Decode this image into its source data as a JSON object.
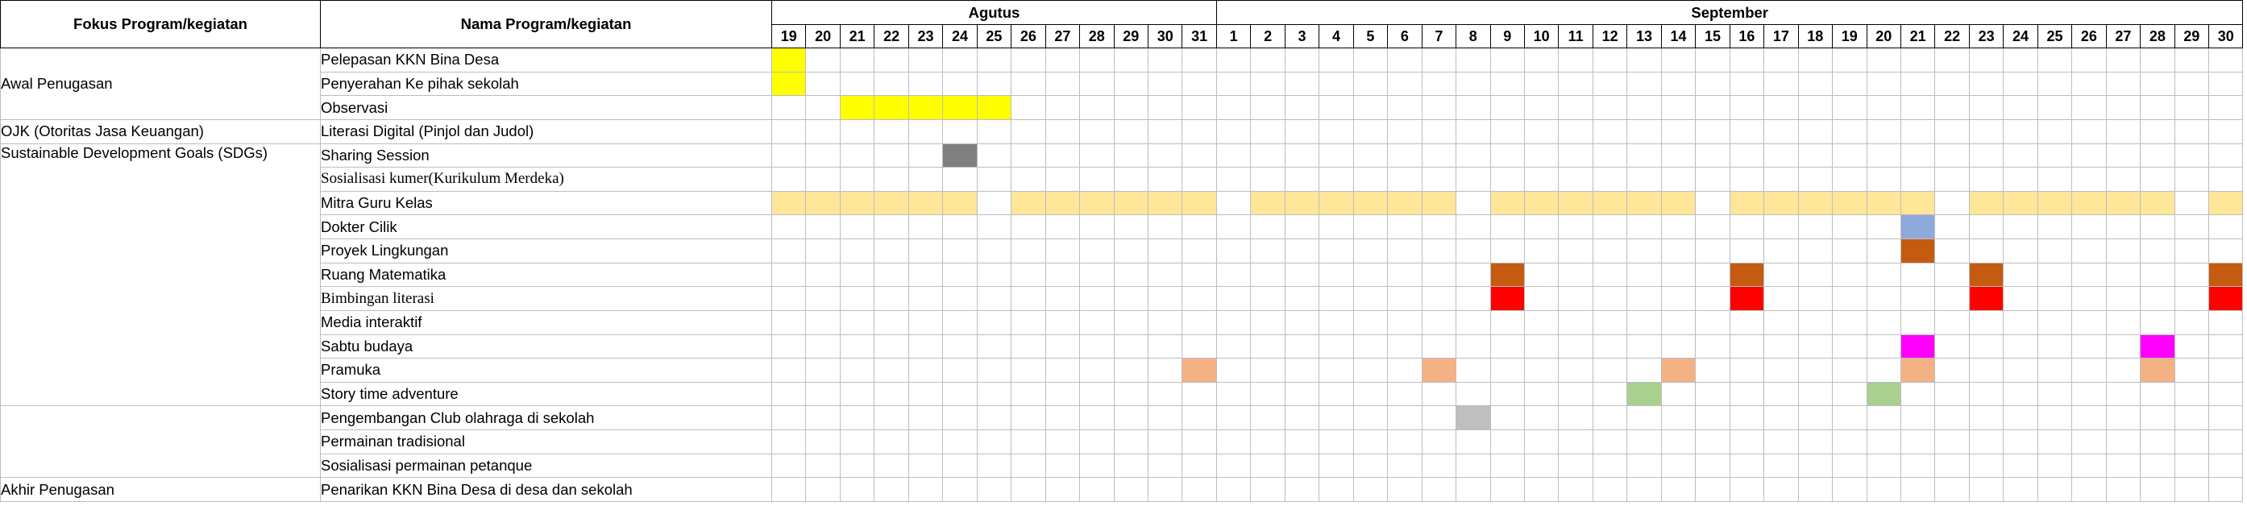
{
  "sheet": {
    "headers": {
      "fokus": "Fokus Program/kegiatan",
      "nama": "Nama Program/kegiatan",
      "months": [
        {
          "name": "Agutus",
          "days": [
            "19",
            "20",
            "21",
            "22",
            "23",
            "24",
            "25",
            "26",
            "27",
            "28",
            "29",
            "30",
            "31"
          ]
        },
        {
          "name": "September",
          "days": [
            "1",
            "2",
            "3",
            "4",
            "5",
            "6",
            "7",
            "8",
            "9",
            "10",
            "11",
            "12",
            "13",
            "14",
            "15",
            "16",
            "17",
            "18",
            "19",
            "20",
            "21",
            "22",
            "23",
            "24",
            "25",
            "26",
            "27",
            "28",
            "29",
            "30"
          ]
        }
      ]
    },
    "groups": [
      {
        "label": "Awal Penugasan",
        "span": 3
      },
      {
        "label": "OJK (Otoritas Jasa Keuangan)",
        "span": 1
      },
      {
        "label": "Sustainable Development Goals (SDGs)",
        "span": 11,
        "align": "top"
      },
      {
        "label": "",
        "span": 3
      },
      {
        "label": "Akhir Penugasan",
        "span": 1
      }
    ],
    "rows": [
      {
        "label": "Pelepasan KKN Bina Desa",
        "fills": [
          {
            "day": 0,
            "color": "#FFFF00"
          }
        ]
      },
      {
        "label": "Penyerahan Ke pihak  sekolah",
        "fills": [
          {
            "day": 0,
            "color": "#FFFF00"
          }
        ]
      },
      {
        "label": "Observasi",
        "fills": [
          {
            "day": 2,
            "color": "#FFFF00"
          },
          {
            "day": 3,
            "color": "#FFFF00"
          },
          {
            "day": 4,
            "color": "#FFFF00"
          },
          {
            "day": 5,
            "color": "#FFFF00"
          },
          {
            "day": 6,
            "color": "#FFFF00"
          }
        ]
      },
      {
        "label": "Literasi Digital (Pinjol dan Judol)",
        "fills": []
      },
      {
        "label": "Sharing Session",
        "fills": [
          {
            "day": 5,
            "color": "#808080"
          }
        ]
      },
      {
        "label": "Sosialisasi kumer(Kurikulum Merdeka)",
        "font": "serif",
        "fills": []
      },
      {
        "label": "Mitra Guru Kelas",
        "fills": [
          {
            "day": 0,
            "color": "#FFE699"
          },
          {
            "day": 1,
            "color": "#FFE699"
          },
          {
            "day": 2,
            "color": "#FFE699"
          },
          {
            "day": 3,
            "color": "#FFE699"
          },
          {
            "day": 4,
            "color": "#FFE699"
          },
          {
            "day": 5,
            "color": "#FFE699"
          },
          {
            "day": 7,
            "color": "#FFE699"
          },
          {
            "day": 8,
            "color": "#FFE699"
          },
          {
            "day": 9,
            "color": "#FFE699"
          },
          {
            "day": 10,
            "color": "#FFE699"
          },
          {
            "day": 11,
            "color": "#FFE699"
          },
          {
            "day": 12,
            "color": "#FFE699"
          },
          {
            "day": 14,
            "color": "#FFE699"
          },
          {
            "day": 15,
            "color": "#FFE699"
          },
          {
            "day": 16,
            "color": "#FFE699"
          },
          {
            "day": 17,
            "color": "#FFE699"
          },
          {
            "day": 18,
            "color": "#FFE699"
          },
          {
            "day": 19,
            "color": "#FFE699"
          },
          {
            "day": 21,
            "color": "#FFE699"
          },
          {
            "day": 22,
            "color": "#FFE699"
          },
          {
            "day": 23,
            "color": "#FFE699"
          },
          {
            "day": 24,
            "color": "#FFE699"
          },
          {
            "day": 25,
            "color": "#FFE699"
          },
          {
            "day": 26,
            "color": "#FFE699"
          },
          {
            "day": 28,
            "color": "#FFE699"
          },
          {
            "day": 29,
            "color": "#FFE699"
          },
          {
            "day": 30,
            "color": "#FFE699"
          },
          {
            "day": 31,
            "color": "#FFE699"
          },
          {
            "day": 32,
            "color": "#FFE699"
          },
          {
            "day": 33,
            "color": "#FFE699"
          },
          {
            "day": 35,
            "color": "#FFE699"
          },
          {
            "day": 36,
            "color": "#FFE699"
          },
          {
            "day": 37,
            "color": "#FFE699"
          },
          {
            "day": 38,
            "color": "#FFE699"
          },
          {
            "day": 39,
            "color": "#FFE699"
          },
          {
            "day": 40,
            "color": "#FFE699"
          },
          {
            "day": 42,
            "color": "#FFE699"
          }
        ]
      },
      {
        "label": "Dokter Cilik",
        "fills": [
          {
            "day": 33,
            "color": "#8EA9DB"
          }
        ]
      },
      {
        "label": "Proyek Lingkungan",
        "fills": [
          {
            "day": 33,
            "color": "#C55A11"
          }
        ]
      },
      {
        "label": "Ruang Matematika",
        "fills": [
          {
            "day": 21,
            "color": "#C55A11"
          },
          {
            "day": 28,
            "color": "#C55A11"
          },
          {
            "day": 35,
            "color": "#C55A11"
          },
          {
            "day": 42,
            "color": "#C55A11"
          }
        ]
      },
      {
        "label": "Bimbingan literasi",
        "font": "serif",
        "fills": [
          {
            "day": 21,
            "color": "#FF0000"
          },
          {
            "day": 28,
            "color": "#FF0000"
          },
          {
            "day": 35,
            "color": "#FF0000"
          },
          {
            "day": 42,
            "color": "#FF0000"
          }
        ]
      },
      {
        "label": "Media interaktif",
        "fills": []
      },
      {
        "label": "Sabtu budaya",
        "fills": [
          {
            "day": 33,
            "color": "#FF00FF"
          },
          {
            "day": 40,
            "color": "#FF00FF"
          }
        ]
      },
      {
        "label": "Pramuka",
        "fills": [
          {
            "day": 12,
            "color": "#F4B183"
          },
          {
            "day": 19,
            "color": "#F4B183"
          },
          {
            "day": 26,
            "color": "#F4B183"
          },
          {
            "day": 33,
            "color": "#F4B183"
          },
          {
            "day": 40,
            "color": "#F4B183"
          }
        ]
      },
      {
        "label": "Story time adventure",
        "fills": [
          {
            "day": 25,
            "color": "#A9D08E"
          },
          {
            "day": 32,
            "color": "#A9D08E"
          }
        ]
      },
      {
        "label": "Pengembangan Club olahraga di sekolah",
        "fills": [
          {
            "day": 20,
            "color": "#BFBFBF"
          }
        ]
      },
      {
        "label": "Permainan tradisional",
        "fills": []
      },
      {
        "label": "Sosialisasi permainan petanque",
        "fills": []
      },
      {
        "label": "Penarikan KKN Bina Desa di desa dan sekolah",
        "fills": []
      }
    ]
  }
}
